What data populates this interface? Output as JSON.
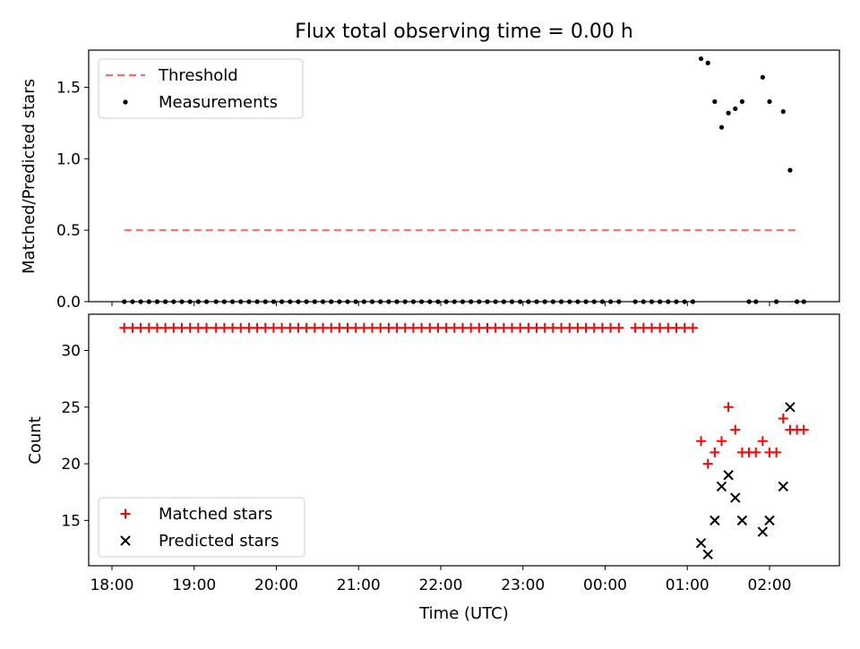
{
  "figure_title": "Flux total observing time = 0.00 h",
  "chart_data": [
    {
      "type": "scatter",
      "title": "Flux total observing time = 0.00 h",
      "xlabel": "",
      "ylabel": "Matched/Predicted stars",
      "xlim": [
        "17:43",
        "02:51"
      ],
      "ylim": [
        0,
        1.76
      ],
      "yticks": [
        0.0,
        0.5,
        1.0,
        1.5
      ],
      "ytick_labels": [
        "0.0",
        "0.5",
        "1.0",
        "1.5"
      ],
      "xticks": [
        "18:00",
        "19:00",
        "20:00",
        "21:00",
        "22:00",
        "23:00",
        "00:00",
        "01:00",
        "02:00"
      ],
      "grid": false,
      "legend_position": "upper left",
      "series": [
        {
          "name": "Threshold",
          "style": "dashed-line",
          "color": "#ff6b6b",
          "x": [
            "18:09",
            "02:21"
          ],
          "y": [
            0.5,
            0.5
          ]
        },
        {
          "name": "Measurements",
          "style": "dot",
          "color": "#000000",
          "x": [
            "18:09",
            "18:15",
            "18:21",
            "18:27",
            "18:33",
            "18:39",
            "18:45",
            "18:51",
            "18:57",
            "19:03",
            "19:09",
            "19:16",
            "19:22",
            "19:28",
            "19:34",
            "19:40",
            "19:46",
            "19:52",
            "19:58",
            "20:04",
            "20:10",
            "20:16",
            "20:22",
            "20:28",
            "20:34",
            "20:40",
            "20:46",
            "20:52",
            "20:58",
            "21:04",
            "21:10",
            "21:16",
            "21:22",
            "21:28",
            "21:34",
            "21:40",
            "21:46",
            "21:52",
            "21:58",
            "22:04",
            "22:10",
            "22:16",
            "22:22",
            "22:28",
            "22:34",
            "22:40",
            "22:46",
            "22:52",
            "22:58",
            "23:04",
            "23:10",
            "23:16",
            "23:22",
            "23:28",
            "23:34",
            "23:40",
            "23:46",
            "23:52",
            "23:58",
            "00:04",
            "00:10",
            "00:22",
            "00:28",
            "00:34",
            "00:40",
            "00:46",
            "00:52",
            "00:58",
            "01:04",
            "01:10",
            "01:15",
            "01:20",
            "01:25",
            "01:30",
            "01:35",
            "01:40",
            "01:45",
            "01:50",
            "01:55",
            "02:00",
            "02:05",
            "02:10",
            "02:15",
            "02:20",
            "02:25"
          ],
          "y": [
            0,
            0,
            0,
            0,
            0,
            0,
            0,
            0,
            0,
            0,
            0,
            0,
            0,
            0,
            0,
            0,
            0,
            0,
            0,
            0,
            0,
            0,
            0,
            0,
            0,
            0,
            0,
            0,
            0,
            0,
            0,
            0,
            0,
            0,
            0,
            0,
            0,
            0,
            0,
            0,
            0,
            0,
            0,
            0,
            0,
            0,
            0,
            0,
            0,
            0,
            0,
            0,
            0,
            0,
            0,
            0,
            0,
            0,
            0,
            0,
            0,
            0,
            0,
            0,
            0,
            0,
            0,
            0,
            0,
            1.7,
            1.67,
            1.4,
            1.22,
            1.32,
            1.35,
            1.4,
            0,
            0,
            1.57,
            1.4,
            0,
            1.33,
            0.92,
            0,
            0
          ]
        }
      ]
    },
    {
      "type": "scatter",
      "title": "",
      "xlabel": "Time (UTC)",
      "ylabel": "Count",
      "xlim": [
        "17:43",
        "02:51"
      ],
      "ylim": [
        11,
        33.2
      ],
      "yticks": [
        15,
        20,
        25,
        30
      ],
      "ytick_labels": [
        "15",
        "20",
        "25",
        "30"
      ],
      "xticks": [
        "18:00",
        "19:00",
        "20:00",
        "21:00",
        "22:00",
        "23:00",
        "00:00",
        "01:00",
        "02:00"
      ],
      "xtick_labels": [
        "18:00",
        "19:00",
        "20:00",
        "21:00",
        "22:00",
        "23:00",
        "00:00",
        "01:00",
        "02:00"
      ],
      "grid": false,
      "legend_position": "lower left",
      "series": [
        {
          "name": "Matched stars",
          "marker": "plus",
          "color": "#ff0000",
          "x": [
            "18:09",
            "18:15",
            "18:21",
            "18:27",
            "18:33",
            "18:39",
            "18:45",
            "18:51",
            "18:57",
            "19:03",
            "19:09",
            "19:16",
            "19:22",
            "19:28",
            "19:34",
            "19:40",
            "19:46",
            "19:52",
            "19:58",
            "20:04",
            "20:10",
            "20:16",
            "20:22",
            "20:28",
            "20:34",
            "20:40",
            "20:46",
            "20:52",
            "20:58",
            "21:04",
            "21:10",
            "21:16",
            "21:22",
            "21:28",
            "21:34",
            "21:40",
            "21:46",
            "21:52",
            "21:58",
            "22:04",
            "22:10",
            "22:16",
            "22:22",
            "22:28",
            "22:34",
            "22:40",
            "22:46",
            "22:52",
            "22:58",
            "23:04",
            "23:10",
            "23:16",
            "23:22",
            "23:28",
            "23:34",
            "23:40",
            "23:46",
            "23:52",
            "23:58",
            "00:04",
            "00:10",
            "00:22",
            "00:28",
            "00:34",
            "00:40",
            "00:46",
            "00:52",
            "00:58",
            "01:04",
            "01:10",
            "01:15",
            "01:20",
            "01:25",
            "01:30",
            "01:35",
            "01:40",
            "01:45",
            "01:50",
            "01:55",
            "02:00",
            "02:05",
            "02:10",
            "02:15",
            "02:20",
            "02:25"
          ],
          "y": [
            32,
            32,
            32,
            32,
            32,
            32,
            32,
            32,
            32,
            32,
            32,
            32,
            32,
            32,
            32,
            32,
            32,
            32,
            32,
            32,
            32,
            32,
            32,
            32,
            32,
            32,
            32,
            32,
            32,
            32,
            32,
            32,
            32,
            32,
            32,
            32,
            32,
            32,
            32,
            32,
            32,
            32,
            32,
            32,
            32,
            32,
            32,
            32,
            32,
            32,
            32,
            32,
            32,
            32,
            32,
            32,
            32,
            32,
            32,
            32,
            32,
            32,
            32,
            32,
            32,
            32,
            32,
            32,
            32,
            22,
            20,
            21,
            22,
            25,
            23,
            21,
            21,
            21,
            22,
            21,
            21,
            24,
            23,
            23,
            23
          ]
        },
        {
          "name": "Predicted stars",
          "marker": "x",
          "color": "#000000",
          "x": [
            "01:10",
            "01:15",
            "01:20",
            "01:25",
            "01:30",
            "01:35",
            "01:40",
            "01:55",
            "02:00",
            "02:10",
            "02:15"
          ],
          "y": [
            13,
            12,
            15,
            18,
            19,
            17,
            15,
            14,
            15,
            18,
            25
          ]
        }
      ]
    }
  ]
}
